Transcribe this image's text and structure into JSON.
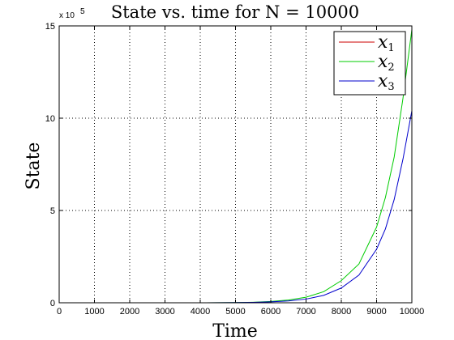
{
  "chart_data": {
    "type": "line",
    "title": "State vs. time for N = 10000",
    "xlabel": "Time",
    "ylabel": "State",
    "y_multiplier_label": "x 10",
    "y_multiplier_exponent": "5",
    "xlim": [
      0,
      10000
    ],
    "ylim": [
      0,
      15
    ],
    "xticks": [
      0,
      1000,
      2000,
      3000,
      4000,
      5000,
      6000,
      7000,
      8000,
      9000,
      10000
    ],
    "yticks": [
      0,
      5,
      10,
      15
    ],
    "grid": true,
    "legend_placement": "top-right",
    "x": [
      0,
      1000,
      2000,
      3000,
      4000,
      5000,
      5500,
      6000,
      6500,
      7000,
      7500,
      8000,
      8500,
      9000,
      9250,
      9500,
      9750,
      10000
    ],
    "series": [
      {
        "name": "x",
        "name_sub": "1",
        "color": "#cc0000",
        "values": [
          0,
          0,
          0,
          0,
          0,
          0,
          0,
          0,
          0,
          0,
          0,
          0,
          0,
          0,
          0,
          0,
          0,
          0
        ]
      },
      {
        "name": "x",
        "name_sub": "2",
        "color": "#00cc00",
        "values": [
          0,
          0,
          0,
          0,
          0,
          0.01,
          0.03,
          0.07,
          0.15,
          0.3,
          0.6,
          1.2,
          2.1,
          4.1,
          5.7,
          7.9,
          11.1,
          14.8
        ]
      },
      {
        "name": "x",
        "name_sub": "3",
        "color": "#0000cc",
        "values": [
          0,
          0,
          0,
          0,
          0,
          0.01,
          0.02,
          0.05,
          0.1,
          0.2,
          0.4,
          0.8,
          1.5,
          2.9,
          4.0,
          5.6,
          7.8,
          10.4
        ]
      }
    ]
  }
}
